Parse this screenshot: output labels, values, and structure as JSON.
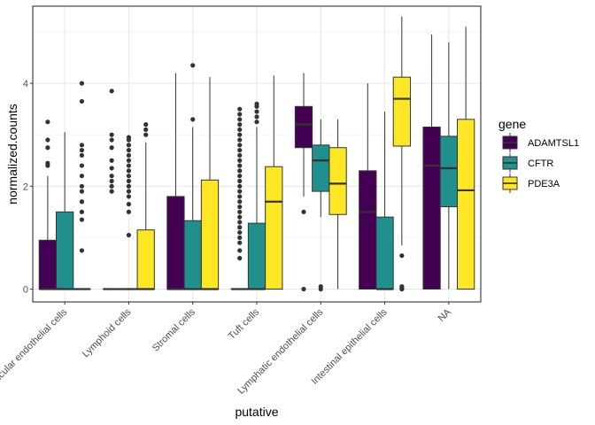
{
  "chart_data": {
    "type": "boxplot",
    "xlabel": "putative",
    "ylabel": "normalized.counts",
    "ylim": [
      -0.25,
      5.5
    ],
    "yticks": [
      0,
      2,
      4
    ],
    "grid": true,
    "legend": {
      "title": "gene",
      "position": "right"
    },
    "categories": [
      "Vascular endothelial cells",
      "Lymphoid cells",
      "Stromal cells",
      "Tuft cells",
      "Lymphatic endothelial cells",
      "Intestinal epithelial cells",
      "NA"
    ],
    "series": [
      {
        "name": "ADAMTSL1",
        "color": "#440154",
        "boxes": [
          {
            "min": 0,
            "q1": 0,
            "median": 0,
            "q3": 0.95,
            "max": 2.2,
            "outliers": [
              2.4,
              2.45,
              2.75,
              2.9,
              3.25
            ]
          },
          {
            "min": 0,
            "q1": 0,
            "median": 0,
            "q3": 0,
            "max": 0,
            "outliers": [
              1.9,
              2.0,
              2.1,
              2.2,
              2.35,
              2.5,
              2.75,
              2.9,
              3.0,
              3.85
            ]
          },
          {
            "min": 0,
            "q1": 0,
            "median": 0,
            "q3": 1.8,
            "max": 4.2,
            "outliers": []
          },
          {
            "min": 0,
            "q1": 0,
            "median": 0,
            "q3": 0,
            "max": 0,
            "outliers": [
              0.6,
              0.75,
              0.9,
              1.0,
              1.1,
              1.2,
              1.3,
              1.4,
              1.5,
              1.6,
              1.7,
              1.8,
              1.9,
              2.0,
              2.1,
              2.2,
              2.3,
              2.4,
              2.5,
              2.6,
              2.7,
              2.8,
              2.9,
              3.0,
              3.1,
              3.2,
              3.3,
              3.4,
              3.5
            ]
          },
          {
            "min": 1.8,
            "q1": 2.75,
            "median": 3.2,
            "q3": 3.55,
            "max": 4.2,
            "outliers": [
              0,
              1.5
            ]
          },
          {
            "min": 0,
            "q1": 0,
            "median": 1.5,
            "q3": 2.3,
            "max": 4.0,
            "outliers": []
          },
          {
            "min": 0,
            "q1": 0,
            "median": 2.4,
            "q3": 3.15,
            "max": 4.95,
            "outliers": []
          }
        ]
      },
      {
        "name": "CFTR",
        "color": "#21908C",
        "boxes": [
          {
            "min": 0,
            "q1": 0,
            "median": 0,
            "q3": 1.5,
            "max": 3.05,
            "outliers": []
          },
          {
            "min": 0,
            "q1": 0,
            "median": 0,
            "q3": 0,
            "max": 0,
            "outliers": [
              1.05,
              1.5,
              1.65,
              1.8,
              1.9,
              2.0,
              2.1,
              2.2,
              2.3,
              2.4,
              2.5,
              2.6,
              2.7,
              2.8,
              2.9,
              2.95
            ]
          },
          {
            "min": 0,
            "q1": 0,
            "median": 0,
            "q3": 1.33,
            "max": 3.15,
            "outliers": [
              3.3,
              4.35
            ]
          },
          {
            "min": 0,
            "q1": 0,
            "median": 0,
            "q3": 1.28,
            "max": 3.15,
            "outliers": [
              3.25,
              3.35,
              3.45,
              3.55,
              3.6
            ]
          },
          {
            "min": 1.4,
            "q1": 1.9,
            "median": 2.5,
            "q3": 2.8,
            "max": 3.3,
            "outliers": [
              0,
              0.05
            ]
          },
          {
            "min": 0,
            "q1": 0,
            "median": 0,
            "q3": 1.4,
            "max": 3.45,
            "outliers": []
          },
          {
            "min": 0,
            "q1": 1.6,
            "median": 2.35,
            "q3": 2.97,
            "max": 4.8,
            "outliers": []
          }
        ]
      },
      {
        "name": "PDE3A",
        "color": "#FDE725",
        "boxes": [
          {
            "min": 0,
            "q1": 0,
            "median": 0,
            "q3": 0,
            "max": 0,
            "outliers": [
              0.75,
              1.35,
              1.5,
              1.7,
              1.9,
              2.0,
              2.2,
              2.4,
              2.6,
              2.7,
              2.8,
              3.65,
              4.0
            ]
          },
          {
            "min": 0,
            "q1": 0,
            "median": 0,
            "q3": 1.15,
            "max": 2.85,
            "outliers": [
              3.0,
              3.1,
              3.2
            ]
          },
          {
            "min": 0,
            "q1": 0,
            "median": 0,
            "q3": 2.12,
            "max": 4.12,
            "outliers": []
          },
          {
            "min": 0,
            "q1": 0,
            "median": 1.7,
            "q3": 2.38,
            "max": 4.15,
            "outliers": []
          },
          {
            "min": 0,
            "q1": 1.45,
            "median": 2.05,
            "q3": 2.75,
            "max": 3.3,
            "outliers": []
          },
          {
            "min": 0.85,
            "q1": 2.78,
            "median": 3.7,
            "q3": 4.12,
            "max": 5.3,
            "outliers": [
              0,
              0.02,
              0.05,
              0.65
            ]
          },
          {
            "min": 0,
            "q1": 0,
            "median": 1.92,
            "q3": 3.3,
            "max": 5.1,
            "outliers": []
          }
        ]
      }
    ]
  }
}
